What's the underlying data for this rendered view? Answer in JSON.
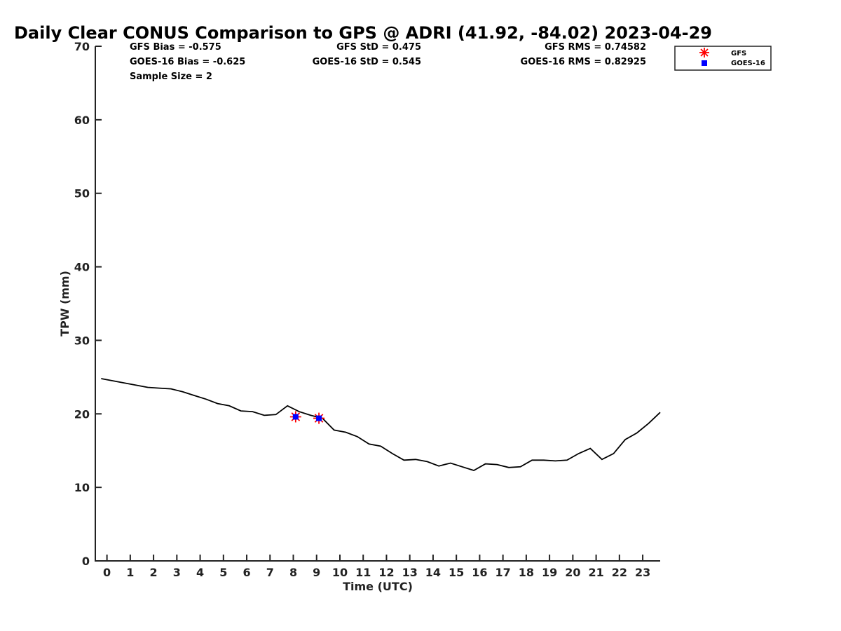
{
  "chart_data": {
    "type": "line",
    "title": "Daily Clear CONUS Comparison to GPS @ ADRI (41.92, -84.02) 2023-04-29",
    "xlabel": "Time (UTC)",
    "ylabel": "TPW (mm)",
    "xlim": [
      -0.5,
      23.75
    ],
    "ylim": [
      0,
      70
    ],
    "xticks": [
      0,
      1,
      2,
      3,
      4,
      5,
      6,
      7,
      8,
      9,
      10,
      11,
      12,
      13,
      14,
      15,
      16,
      17,
      18,
      19,
      20,
      21,
      22,
      23
    ],
    "yticks": [
      0,
      10,
      20,
      30,
      40,
      50,
      60,
      70
    ],
    "grid": false,
    "legend_position": "top-right outside",
    "stats": {
      "gfs_bias": "GFS Bias = -0.575",
      "goes_bias": "GOES-16 Bias = -0.625",
      "sample_size": "Sample Size = 2",
      "gfs_std": "GFS StD = 0.475",
      "goes_std": "GOES-16 StD = 0.545",
      "gfs_rms": "GFS RMS = 0.74582",
      "goes_rms": "GOES-16 RMS = 0.82925"
    },
    "gps_series": {
      "color": "#000000",
      "x": [
        -0.25,
        0.25,
        0.75,
        1.25,
        1.75,
        2.25,
        2.75,
        3.25,
        3.75,
        4.25,
        4.75,
        5.25,
        5.75,
        6.25,
        6.75,
        7.25,
        7.75,
        8.25,
        8.75,
        9.25,
        9.75,
        10.25,
        10.75,
        11.25,
        11.75,
        12.25,
        12.75,
        13.25,
        13.75,
        14.25,
        14.75,
        15.25,
        15.75,
        16.25,
        16.75,
        17.25,
        17.75,
        18.25,
        18.75,
        19.25,
        19.75,
        20.25,
        20.75,
        21.25,
        21.75,
        22.25,
        22.75,
        23.25,
        23.75
      ],
      "values": [
        24.8,
        24.5,
        24.2,
        23.9,
        23.6,
        23.5,
        23.4,
        23.0,
        22.5,
        22.0,
        21.4,
        21.1,
        20.4,
        20.3,
        19.8,
        19.9,
        21.1,
        20.3,
        19.8,
        19.4,
        17.8,
        17.5,
        16.9,
        15.9,
        15.6,
        14.6,
        13.7,
        13.8,
        13.5,
        12.9,
        13.3,
        12.8,
        12.3,
        13.2,
        13.1,
        12.7,
        12.8,
        13.7,
        13.7,
        13.6,
        13.7,
        14.6,
        15.3,
        13.8,
        14.6,
        16.5,
        17.4,
        18.7,
        20.2
      ]
    },
    "series": [
      {
        "name": "GFS",
        "marker": "asterisk",
        "color": "#ff0000",
        "x": [
          8.1,
          9.1
        ],
        "values": [
          19.6,
          19.4
        ]
      },
      {
        "name": "GOES-16",
        "marker": "square",
        "color": "#0000ff",
        "x": [
          8.1,
          9.1
        ],
        "values": [
          19.6,
          19.4
        ]
      }
    ]
  }
}
